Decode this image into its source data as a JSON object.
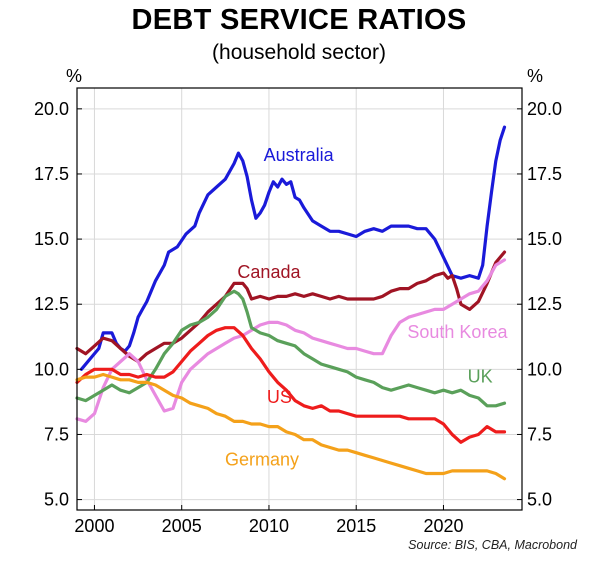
{
  "chart_data": {
    "type": "line",
    "title": "DEBT SERVICE RATIOS",
    "subtitle": "(household sector)",
    "y_unit_left": "%",
    "y_unit_right": "%",
    "xlim": [
      1999,
      2024.5
    ],
    "ylim": [
      4.6,
      20.8
    ],
    "x_ticks": [
      2000,
      2005,
      2010,
      2015,
      2020
    ],
    "y_ticks": [
      5.0,
      7.5,
      10.0,
      12.5,
      15.0,
      17.5,
      20.0
    ],
    "grid": true,
    "source": "Source: BIS, CBA, Macrobond",
    "series": [
      {
        "name": "Australia",
        "color": "#1a1ad9",
        "label_at": [
          2011.7,
          18.0
        ],
        "x": [
          1999.25,
          1999.75,
          2000.25,
          2000.5,
          2000.75,
          2001.0,
          2001.25,
          2001.5,
          2001.75,
          2002.0,
          2002.25,
          2002.5,
          2002.75,
          2003.0,
          2003.5,
          2004.0,
          2004.25,
          2004.75,
          2005.25,
          2005.75,
          2006.0,
          2006.5,
          2007.0,
          2007.5,
          2008.0,
          2008.25,
          2008.5,
          2008.75,
          2009.0,
          2009.25,
          2009.5,
          2009.75,
          2010.0,
          2010.25,
          2010.5,
          2010.75,
          2011.0,
          2011.25,
          2011.5,
          2011.75,
          2012.0,
          2012.5,
          2013.0,
          2013.5,
          2014.0,
          2014.5,
          2015.0,
          2015.5,
          2016.0,
          2016.5,
          2017.0,
          2017.5,
          2018.0,
          2018.5,
          2019.0,
          2019.5,
          2020.0,
          2020.5,
          2021.0,
          2021.5,
          2022.0,
          2022.25,
          2022.5,
          2022.75,
          2023.0,
          2023.25,
          2023.5
        ],
        "values": [
          10.0,
          10.4,
          10.8,
          11.4,
          11.4,
          11.4,
          11.0,
          10.8,
          10.7,
          10.9,
          11.4,
          12.0,
          12.3,
          12.6,
          13.4,
          14.0,
          14.5,
          14.7,
          15.2,
          15.5,
          16.0,
          16.7,
          17.0,
          17.3,
          17.9,
          18.3,
          18.0,
          17.4,
          16.5,
          15.8,
          16.0,
          16.3,
          16.8,
          17.2,
          17.0,
          17.3,
          17.1,
          17.2,
          16.6,
          16.5,
          16.2,
          15.7,
          15.5,
          15.3,
          15.3,
          15.2,
          15.1,
          15.3,
          15.4,
          15.3,
          15.5,
          15.5,
          15.5,
          15.4,
          15.4,
          15.0,
          14.3,
          13.6,
          13.5,
          13.6,
          13.5,
          14.0,
          15.5,
          16.8,
          18.0,
          18.8,
          19.3
        ]
      },
      {
        "name": "Canada",
        "color": "#a01424",
        "label_at": [
          2010.0,
          13.5
        ],
        "x": [
          1999.0,
          1999.5,
          2000.0,
          2000.5,
          2001.0,
          2001.5,
          2002.0,
          2002.5,
          2003.0,
          2003.5,
          2004.0,
          2004.5,
          2005.0,
          2005.5,
          2006.0,
          2006.5,
          2007.0,
          2007.5,
          2008.0,
          2008.5,
          2008.75,
          2009.0,
          2009.5,
          2010.0,
          2010.5,
          2011.0,
          2011.5,
          2012.0,
          2012.5,
          2013.0,
          2013.5,
          2014.0,
          2014.5,
          2015.0,
          2015.5,
          2016.0,
          2016.5,
          2017.0,
          2017.5,
          2018.0,
          2018.5,
          2019.0,
          2019.5,
          2020.0,
          2020.25,
          2020.5,
          2020.75,
          2021.0,
          2021.5,
          2022.0,
          2022.5,
          2023.0,
          2023.5
        ],
        "values": [
          10.8,
          10.6,
          10.9,
          11.2,
          11.1,
          10.8,
          10.5,
          10.3,
          10.6,
          10.8,
          11.0,
          11.0,
          11.2,
          11.5,
          11.8,
          12.2,
          12.5,
          12.8,
          13.3,
          13.3,
          13.1,
          12.7,
          12.8,
          12.7,
          12.8,
          12.8,
          12.9,
          12.8,
          12.9,
          12.8,
          12.7,
          12.8,
          12.7,
          12.7,
          12.7,
          12.7,
          12.8,
          13.0,
          13.1,
          13.1,
          13.3,
          13.4,
          13.6,
          13.7,
          13.5,
          13.6,
          13.1,
          12.5,
          12.3,
          12.6,
          13.3,
          14.1,
          14.5
        ]
      },
      {
        "name": "South Korea",
        "color": "#e88ae0",
        "label_at": [
          2020.8,
          11.2
        ],
        "x": [
          1999.0,
          1999.5,
          2000.0,
          2000.5,
          2001.0,
          2001.5,
          2002.0,
          2002.5,
          2003.0,
          2003.5,
          2004.0,
          2004.5,
          2005.0,
          2005.5,
          2006.0,
          2006.5,
          2007.0,
          2007.5,
          2008.0,
          2008.5,
          2009.0,
          2009.5,
          2010.0,
          2010.5,
          2011.0,
          2011.5,
          2012.0,
          2012.5,
          2013.0,
          2013.5,
          2014.0,
          2014.5,
          2015.0,
          2015.5,
          2016.0,
          2016.5,
          2017.0,
          2017.5,
          2018.0,
          2018.5,
          2019.0,
          2019.5,
          2020.0,
          2020.5,
          2021.0,
          2021.5,
          2022.0,
          2022.5,
          2023.0,
          2023.5
        ],
        "values": [
          8.1,
          8.0,
          8.3,
          9.3,
          10.0,
          10.3,
          10.6,
          10.3,
          9.6,
          9.0,
          8.4,
          8.5,
          9.5,
          10.0,
          10.3,
          10.6,
          10.8,
          11.0,
          11.2,
          11.3,
          11.5,
          11.7,
          11.8,
          11.8,
          11.7,
          11.5,
          11.4,
          11.2,
          11.1,
          11.0,
          10.9,
          10.8,
          10.8,
          10.7,
          10.6,
          10.6,
          11.3,
          11.8,
          12.0,
          12.1,
          12.2,
          12.3,
          12.3,
          12.5,
          12.7,
          12.9,
          13.0,
          13.4,
          14.0,
          14.2
        ]
      },
      {
        "name": "UK",
        "color": "#5aa05a",
        "label_at": [
          2022.1,
          9.5
        ],
        "x": [
          1999.0,
          1999.5,
          2000.0,
          2000.5,
          2001.0,
          2001.5,
          2002.0,
          2002.5,
          2003.0,
          2003.5,
          2004.0,
          2004.5,
          2005.0,
          2005.5,
          2006.0,
          2006.5,
          2007.0,
          2007.5,
          2008.0,
          2008.25,
          2008.5,
          2008.75,
          2009.0,
          2009.5,
          2010.0,
          2010.5,
          2011.0,
          2011.5,
          2012.0,
          2012.5,
          2013.0,
          2013.5,
          2014.0,
          2014.5,
          2015.0,
          2015.5,
          2016.0,
          2016.5,
          2017.0,
          2017.5,
          2018.0,
          2018.5,
          2019.0,
          2019.5,
          2020.0,
          2020.5,
          2021.0,
          2021.5,
          2022.0,
          2022.5,
          2023.0,
          2023.5
        ],
        "values": [
          8.9,
          8.8,
          9.0,
          9.2,
          9.4,
          9.2,
          9.1,
          9.3,
          9.5,
          10.0,
          10.6,
          11.0,
          11.5,
          11.7,
          11.8,
          12.0,
          12.3,
          12.8,
          13.0,
          12.9,
          12.7,
          12.2,
          11.6,
          11.4,
          11.3,
          11.1,
          11.0,
          10.9,
          10.6,
          10.4,
          10.2,
          10.1,
          10.0,
          9.9,
          9.7,
          9.6,
          9.5,
          9.3,
          9.2,
          9.3,
          9.4,
          9.3,
          9.2,
          9.1,
          9.2,
          9.1,
          9.2,
          9.0,
          8.9,
          8.6,
          8.6,
          8.7
        ]
      },
      {
        "name": "US",
        "color": "#ee1c1c",
        "label_at": [
          2010.6,
          8.7
        ],
        "x": [
          1999.0,
          1999.5,
          2000.0,
          2000.5,
          2001.0,
          2001.5,
          2002.0,
          2002.5,
          2003.0,
          2003.5,
          2004.0,
          2004.5,
          2005.0,
          2005.5,
          2006.0,
          2006.5,
          2007.0,
          2007.5,
          2008.0,
          2008.5,
          2009.0,
          2009.5,
          2010.0,
          2010.5,
          2011.0,
          2011.5,
          2012.0,
          2012.5,
          2013.0,
          2013.5,
          2014.0,
          2014.5,
          2015.0,
          2015.5,
          2016.0,
          2016.5,
          2017.0,
          2017.5,
          2018.0,
          2018.5,
          2019.0,
          2019.5,
          2020.0,
          2020.5,
          2021.0,
          2021.5,
          2022.0,
          2022.5,
          2023.0,
          2023.5
        ],
        "values": [
          9.5,
          9.8,
          10.0,
          10.0,
          10.0,
          9.8,
          9.8,
          9.7,
          9.8,
          9.7,
          9.7,
          9.9,
          10.3,
          10.7,
          11.0,
          11.3,
          11.5,
          11.6,
          11.6,
          11.3,
          10.8,
          10.4,
          9.9,
          9.5,
          9.2,
          8.8,
          8.6,
          8.5,
          8.6,
          8.4,
          8.4,
          8.3,
          8.2,
          8.2,
          8.2,
          8.2,
          8.2,
          8.2,
          8.1,
          8.1,
          8.1,
          8.1,
          7.9,
          7.5,
          7.2,
          7.4,
          7.5,
          7.8,
          7.6,
          7.6
        ]
      },
      {
        "name": "Germany",
        "color": "#f4a11a",
        "label_at": [
          2009.6,
          6.3
        ],
        "x": [
          1999.0,
          1999.5,
          2000.0,
          2000.5,
          2001.0,
          2001.5,
          2002.0,
          2002.5,
          2003.0,
          2003.5,
          2004.0,
          2004.5,
          2005.0,
          2005.5,
          2006.0,
          2006.5,
          2007.0,
          2007.5,
          2008.0,
          2008.5,
          2009.0,
          2009.5,
          2010.0,
          2010.5,
          2011.0,
          2011.5,
          2012.0,
          2012.5,
          2013.0,
          2013.5,
          2014.0,
          2014.5,
          2015.0,
          2015.5,
          2016.0,
          2016.5,
          2017.0,
          2017.5,
          2018.0,
          2018.5,
          2019.0,
          2019.5,
          2020.0,
          2020.5,
          2021.0,
          2021.5,
          2022.0,
          2022.5,
          2023.0,
          2023.5
        ],
        "values": [
          9.6,
          9.7,
          9.7,
          9.8,
          9.7,
          9.6,
          9.6,
          9.5,
          9.5,
          9.4,
          9.2,
          9.0,
          8.9,
          8.7,
          8.6,
          8.5,
          8.3,
          8.2,
          8.0,
          8.0,
          7.9,
          7.9,
          7.8,
          7.8,
          7.6,
          7.5,
          7.3,
          7.3,
          7.1,
          7.0,
          6.9,
          6.9,
          6.8,
          6.7,
          6.6,
          6.5,
          6.4,
          6.3,
          6.2,
          6.1,
          6.0,
          6.0,
          6.0,
          6.1,
          6.1,
          6.1,
          6.1,
          6.1,
          6.0,
          5.8
        ]
      }
    ]
  }
}
